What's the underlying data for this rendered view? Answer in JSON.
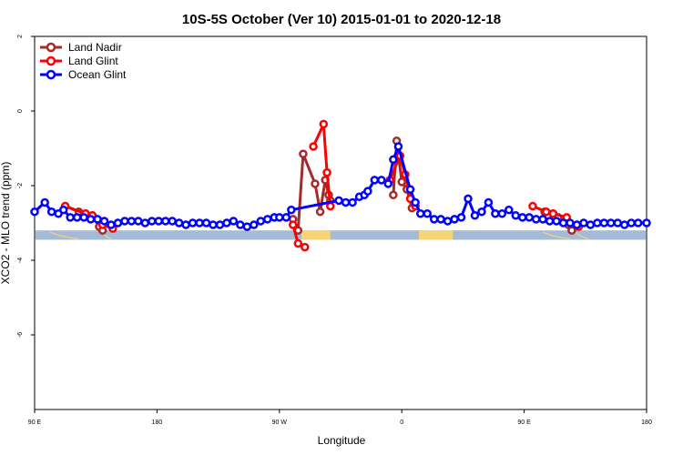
{
  "chart_data": {
    "type": "line",
    "title": "10S-5S October (Ver 10)   2015-01-01 to 2020-12-18",
    "xlabel": "Longitude",
    "ylabel": "XCO2 - MLO trend (ppm)",
    "xlim": [
      -90,
      270
    ],
    "ylim": [
      -8,
      2
    ],
    "x_ticks": [
      {
        "value": -90,
        "label": "90 E"
      },
      {
        "value": -18,
        "label": "180"
      },
      {
        "value": 54,
        "label": "90 W"
      },
      {
        "value": 126,
        "label": "0"
      },
      {
        "value": 198,
        "label": "90 E"
      },
      {
        "value": 270,
        "label": "180"
      }
    ],
    "y_ticks": [
      {
        "value": 2,
        "label": "2"
      },
      {
        "value": 0,
        "label": "0"
      },
      {
        "value": -2,
        "label": "-2"
      },
      {
        "value": -4,
        "label": "-4"
      },
      {
        "value": -6,
        "label": "-6"
      }
    ],
    "legend_position": "top-left",
    "series": [
      {
        "name": "Land Nadir",
        "color": "#a52a2a",
        "segments": [
          [
            [
              -72,
              -2.55
            ],
            [
              -64,
              -2.7
            ],
            [
              -60,
              -2.75
            ],
            [
              -56,
              -2.8
            ],
            [
              -52,
              -3.1
            ],
            [
              -50,
              -3.2
            ]
          ],
          [
            [
              62,
              -2.9
            ],
            [
              65,
              -3.2
            ],
            [
              68,
              -1.15
            ],
            [
              75,
              -1.95
            ],
            [
              78,
              -2.7
            ],
            [
              81,
              -1.85
            ],
            [
              83,
              -2.25
            ],
            [
              84,
              -2.4
            ]
          ],
          [
            [
              121,
              -2.25
            ],
            [
              123,
              -0.8
            ],
            [
              126,
              -1.9
            ],
            [
              129,
              -2.1
            ],
            [
              132,
              -2.6
            ]
          ],
          [
            [
              210,
              -2.7
            ],
            [
              215,
              -2.75
            ],
            [
              218,
              -2.85
            ],
            [
              224,
              -3.05
            ],
            [
              226,
              -3.2
            ]
          ]
        ]
      },
      {
        "name": "Land Glint",
        "color": "#ff0000",
        "segments": [
          [
            [
              -72,
              -2.55
            ],
            [
              -60,
              -2.75
            ],
            [
              -56,
              -2.8
            ],
            [
              -50,
              -3.05
            ],
            [
              -44,
              -3.15
            ]
          ],
          [
            [
              62,
              -3.05
            ],
            [
              65,
              -3.55
            ],
            [
              69,
              -3.65
            ]
          ],
          [
            [
              74,
              -0.95
            ],
            [
              80,
              -0.35
            ],
            [
              82,
              -1.65
            ],
            [
              84,
              -2.55
            ]
          ],
          [
            [
              119,
              -1.85
            ],
            [
              125,
              -1.2
            ],
            [
              128,
              -1.7
            ],
            [
              131,
              -2.35
            ],
            [
              134,
              -2.55
            ]
          ],
          [
            [
              203,
              -2.55
            ],
            [
              211,
              -2.7
            ],
            [
              215,
              -2.75
            ],
            [
              223,
              -2.85
            ],
            [
              230,
              -3.1
            ]
          ]
        ]
      },
      {
        "name": "Ocean Glint",
        "color": "#0000ff",
        "segments": [
          [
            [
              -90,
              -2.7
            ],
            [
              -84,
              -2.45
            ],
            [
              -80,
              -2.7
            ],
            [
              -76,
              -2.75
            ],
            [
              -73,
              -2.65
            ],
            [
              -69,
              -2.85
            ],
            [
              -65,
              -2.85
            ],
            [
              -61,
              -2.85
            ],
            [
              -57,
              -2.9
            ],
            [
              -53,
              -2.9
            ],
            [
              -49,
              -2.95
            ],
            [
              -45,
              -3.05
            ],
            [
              -41,
              -3.0
            ],
            [
              -37,
              -2.95
            ],
            [
              -33,
              -2.95
            ],
            [
              -29,
              -2.95
            ],
            [
              -25,
              -3.0
            ],
            [
              -21,
              -2.95
            ],
            [
              -17,
              -2.95
            ],
            [
              -13,
              -2.95
            ],
            [
              -9,
              -2.95
            ],
            [
              -5,
              -3.0
            ],
            [
              -1,
              -3.05
            ],
            [
              3,
              -3.0
            ],
            [
              7,
              -3.0
            ],
            [
              11,
              -3.0
            ],
            [
              15,
              -3.05
            ],
            [
              19,
              -3.05
            ],
            [
              23,
              -3.0
            ],
            [
              27,
              -2.95
            ],
            [
              31,
              -3.05
            ],
            [
              35,
              -3.1
            ],
            [
              39,
              -3.05
            ],
            [
              43,
              -2.95
            ],
            [
              47,
              -2.9
            ],
            [
              51,
              -2.85
            ],
            [
              54,
              -2.85
            ],
            [
              58,
              -2.85
            ],
            [
              61,
              -2.65
            ],
            [
              89,
              -2.4
            ],
            [
              93,
              -2.45
            ],
            [
              97,
              -2.45
            ],
            [
              101,
              -2.3
            ],
            [
              104,
              -2.25
            ],
            [
              106,
              -2.15
            ],
            [
              110,
              -1.85
            ],
            [
              114,
              -1.85
            ],
            [
              118,
              -1.95
            ],
            [
              121,
              -1.3
            ],
            [
              124,
              -0.95
            ],
            [
              131,
              -2.1
            ],
            [
              134,
              -2.45
            ],
            [
              137,
              -2.75
            ],
            [
              141,
              -2.75
            ],
            [
              145,
              -2.9
            ],
            [
              149,
              -2.9
            ],
            [
              153,
              -2.95
            ],
            [
              157,
              -2.9
            ],
            [
              161,
              -2.85
            ],
            [
              165,
              -2.35
            ],
            [
              169,
              -2.8
            ],
            [
              173,
              -2.7
            ],
            [
              177,
              -2.45
            ],
            [
              181,
              -2.75
            ],
            [
              185,
              -2.75
            ],
            [
              189,
              -2.65
            ],
            [
              193,
              -2.8
            ],
            [
              197,
              -2.85
            ],
            [
              201,
              -2.85
            ],
            [
              205,
              -2.9
            ],
            [
              209,
              -2.9
            ],
            [
              213,
              -2.95
            ],
            [
              217,
              -2.95
            ],
            [
              221,
              -3.0
            ],
            [
              225,
              -3.0
            ],
            [
              229,
              -3.05
            ],
            [
              233,
              -3.0
            ],
            [
              237,
              -3.05
            ],
            [
              241,
              -3.0
            ],
            [
              245,
              -3.0
            ],
            [
              249,
              -3.0
            ],
            [
              253,
              -3.0
            ],
            [
              257,
              -3.05
            ],
            [
              261,
              -3.0
            ],
            [
              265,
              -3.0
            ],
            [
              270,
              -3.0
            ]
          ]
        ]
      }
    ],
    "map_strip": {
      "ocean_color": "#a3bbd6",
      "land_color": "#f7d576",
      "y_top": -3.2,
      "y_bottom": -3.45,
      "land_spans": [
        [
          67,
          84
        ],
        [
          136,
          156
        ]
      ],
      "land_specks": [
        [
          -81,
          -64
        ],
        [
          -50,
          -45
        ],
        [
          209,
          225
        ],
        [
          228,
          236
        ]
      ]
    }
  }
}
